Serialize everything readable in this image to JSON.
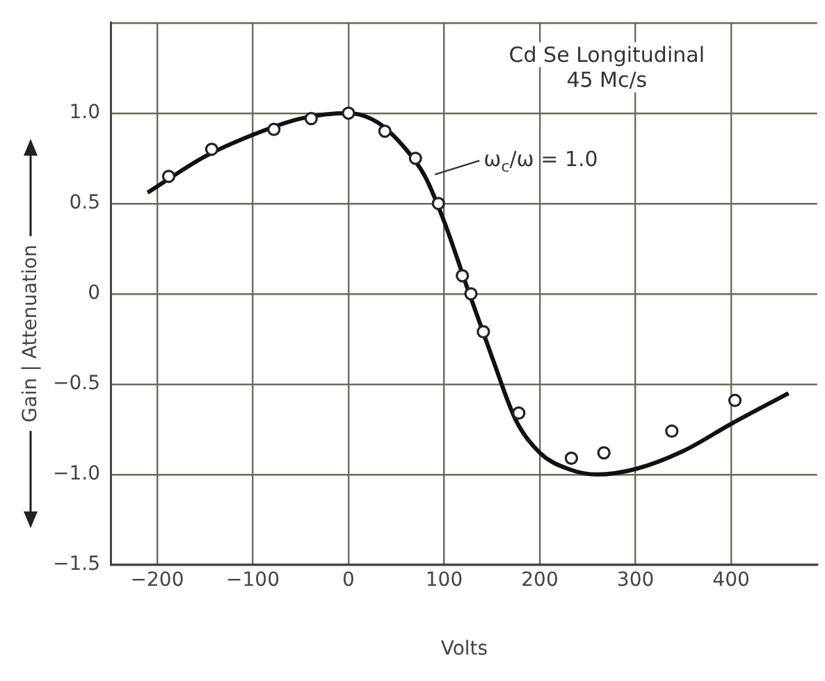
{
  "chart_data": {
    "type": "scatter",
    "title": "Cd Se Longitudinal",
    "subtitle": "45 Mc/s",
    "xlabel": "Volts",
    "ylabel": "Gain | Attenuation",
    "annotations": [
      {
        "text": "ω$_{c}$/ω = 1.0",
        "x": 86,
        "y": 0.66
      }
    ],
    "series": [
      {
        "color": "#222222",
        "marker": "circle",
        "x": [
          -188,
          -143,
          -78,
          -39,
          0,
          38,
          70,
          94,
          119,
          128,
          141,
          178,
          233,
          267,
          338,
          404
        ],
        "values": [
          0.65,
          0.8,
          0.91,
          0.97,
          1.0,
          0.9,
          0.75,
          0.5,
          0.1,
          0.0,
          -0.21,
          -0.66,
          -0.91,
          -0.88,
          -0.76,
          -0.59
        ]
      },
      {
        "type": "line",
        "color": "#111111",
        "marker": "none",
        "line_style": "solid",
        "x": [
          -210,
          -150,
          -100,
          -50,
          0,
          30,
          60,
          80,
          100,
          125,
          150,
          175,
          200,
          230,
          260,
          300,
          350,
          400,
          460
        ],
        "values": [
          0.56,
          0.76,
          0.88,
          0.97,
          1.0,
          0.95,
          0.8,
          0.65,
          0.4,
          0.02,
          -0.35,
          -0.7,
          -0.88,
          -0.97,
          -1.0,
          -0.97,
          -0.87,
          -0.72,
          -0.55
        ]
      }
    ],
    "xlim": [
      -248,
      490
    ],
    "xticks": [
      -200,
      -100,
      0,
      100,
      200,
      300,
      400
    ],
    "ylim": [
      -1.5,
      1.5
    ],
    "yticks": [
      -1.5,
      {
        "value": -1.0,
        "label": "−1.0"
      },
      -0.5,
      0,
      0.5,
      {
        "value": 1.0,
        "label": "1.0"
      },
      {
        "value": 1.5,
        "label": null
      }
    ],
    "grid": true,
    "legend": false
  }
}
